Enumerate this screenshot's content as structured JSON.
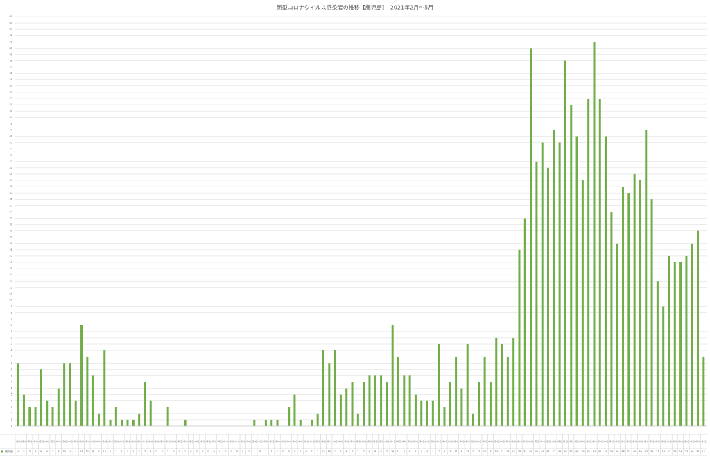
{
  "chart_data": {
    "type": "bar",
    "title": "新型コロナウイルス感染者の推移【鹿児島】　2021年2月～5月",
    "categories": [
      "2月1日",
      "2月2日",
      "2月3日",
      "2月4日",
      "2月5日",
      "2月6日",
      "2月7日",
      "2月8日",
      "2月9日",
      "2月10日",
      "2月11日",
      "2月12日",
      "2月13日",
      "2月14日",
      "2月15日",
      "2月16日",
      "2月17日",
      "2月18日",
      "2月19日",
      "2月20日",
      "2月21日",
      "2月22日",
      "2月23日",
      "2月24日",
      "2月25日",
      "2月26日",
      "2月27日",
      "2月28日",
      "3月1日",
      "3月2日",
      "3月3日",
      "3月4日",
      "3月5日",
      "3月6日",
      "3月7日",
      "3月8日",
      "3月9日",
      "3月10日",
      "3月11日",
      "3月12日",
      "3月13日",
      "3月14日",
      "3月15日",
      "3月16日",
      "3月17日",
      "3月18日",
      "3月19日",
      "3月20日",
      "3月21日",
      "3月22日",
      "3月23日",
      "3月24日",
      "3月25日",
      "3月26日",
      "3月27日",
      "3月28日",
      "3月29日",
      "3月30日",
      "3月31日",
      "4月1日",
      "4月2日",
      "4月3日",
      "4月4日",
      "4月5日",
      "4月6日",
      "4月7日",
      "4月8日",
      "4月9日",
      "4月10日",
      "4月11日",
      "4月12日",
      "4月13日",
      "4月14日",
      "4月15日",
      "4月16日",
      "4月17日",
      "4月18日",
      "4月19日",
      "4月20日",
      "4月21日",
      "4月22日",
      "4月23日",
      "4月24日",
      "4月25日",
      "4月26日",
      "4月27日",
      "4月28日",
      "4月29日",
      "4月30日",
      "5月1日",
      "5月2日",
      "5月3日",
      "5月4日",
      "5月5日",
      "5月6日",
      "5月7日",
      "5月8日",
      "5月9日",
      "5月10日",
      "5月11日",
      "5月12日",
      "5月13日",
      "5月14日",
      "5月15日",
      "5月16日",
      "5月17日",
      "5月18日",
      "5月19日",
      "5月20日",
      "5月21日",
      "5月22日",
      "5月23日",
      "5月24日",
      "5月25日",
      "5月26日",
      "5月27日",
      "5月28日",
      "5月29日",
      "5月30日",
      "5月31日"
    ],
    "series": [
      {
        "name": "鹿児島",
        "color": "#70ad47",
        "values": [
          10,
          5,
          3,
          3,
          9,
          4,
          3,
          6,
          10,
          10,
          4,
          16,
          11,
          8,
          2,
          12,
          1,
          3,
          1,
          1,
          1,
          2,
          7,
          4,
          0,
          0,
          3,
          0,
          0,
          1,
          0,
          0,
          0,
          0,
          0,
          0,
          0,
          0,
          0,
          0,
          0,
          1,
          0,
          1,
          1,
          1,
          0,
          3,
          5,
          1,
          0,
          1,
          2,
          12,
          10,
          12,
          5,
          6,
          7,
          2,
          7,
          8,
          8,
          8,
          7,
          16,
          11,
          8,
          8,
          5,
          4,
          4,
          4,
          13,
          3,
          7,
          11,
          6,
          13,
          2,
          7,
          11,
          7,
          14,
          13,
          11,
          14,
          28,
          33,
          60,
          42,
          45,
          41,
          47,
          45,
          58,
          51,
          46,
          39,
          52,
          61,
          52,
          46,
          34,
          29,
          38,
          37,
          40,
          39,
          47,
          36,
          23,
          19,
          27,
          26,
          26,
          27,
          29,
          31,
          11
        ]
      }
    ],
    "ylim": [
      0,
      65
    ],
    "yticks": [
      0,
      1,
      2,
      3,
      4,
      5,
      6,
      7,
      8,
      9,
      10,
      11,
      12,
      13,
      14,
      15,
      16,
      17,
      18,
      19,
      20,
      21,
      22,
      23,
      24,
      25,
      26,
      27,
      28,
      29,
      30,
      31,
      32,
      33,
      34,
      35,
      36,
      37,
      38,
      39,
      40,
      41,
      42,
      43,
      44,
      45,
      46,
      47,
      48,
      49,
      50,
      51,
      52,
      53,
      54,
      55,
      56,
      57,
      58,
      59,
      60,
      61,
      62,
      63,
      64,
      65
    ],
    "grid": true
  }
}
